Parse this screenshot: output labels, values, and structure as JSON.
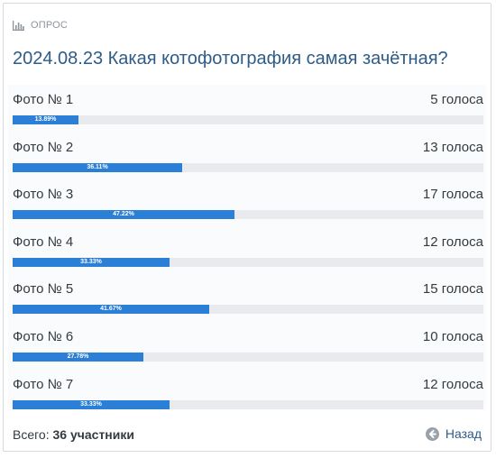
{
  "header": {
    "section_label": "ОПРОС",
    "icon": "bar-chart-icon"
  },
  "poll": {
    "title": "2024.08.23 Какая котофотография самая зачётная?",
    "options": [
      {
        "label": "Фото № 1",
        "votes_text": "5 голоса",
        "percent_text": "13.89%",
        "percent": 13.89
      },
      {
        "label": "Фото № 2",
        "votes_text": "13 голоса",
        "percent_text": "36.11%",
        "percent": 36.11
      },
      {
        "label": "Фото № 3",
        "votes_text": "17 голоса",
        "percent_text": "47.22%",
        "percent": 47.22
      },
      {
        "label": "Фото № 4",
        "votes_text": "12 голоса",
        "percent_text": "33.33%",
        "percent": 33.33
      },
      {
        "label": "Фото № 5",
        "votes_text": "15 голоса",
        "percent_text": "41.67%",
        "percent": 41.67
      },
      {
        "label": "Фото № 6",
        "votes_text": "10 голоса",
        "percent_text": "27.78%",
        "percent": 27.78
      },
      {
        "label": "Фото № 7",
        "votes_text": "12 голоса",
        "percent_text": "33.33%",
        "percent": 33.33
      }
    ]
  },
  "footer": {
    "total_prefix": "Всего:",
    "total_value": "36 участники",
    "back_label": "Назад",
    "back_icon": "arrow-left-circle-icon"
  },
  "colors": {
    "accent": "#2b7fd6",
    "title": "#2d5c88",
    "track": "#e8eaed"
  }
}
